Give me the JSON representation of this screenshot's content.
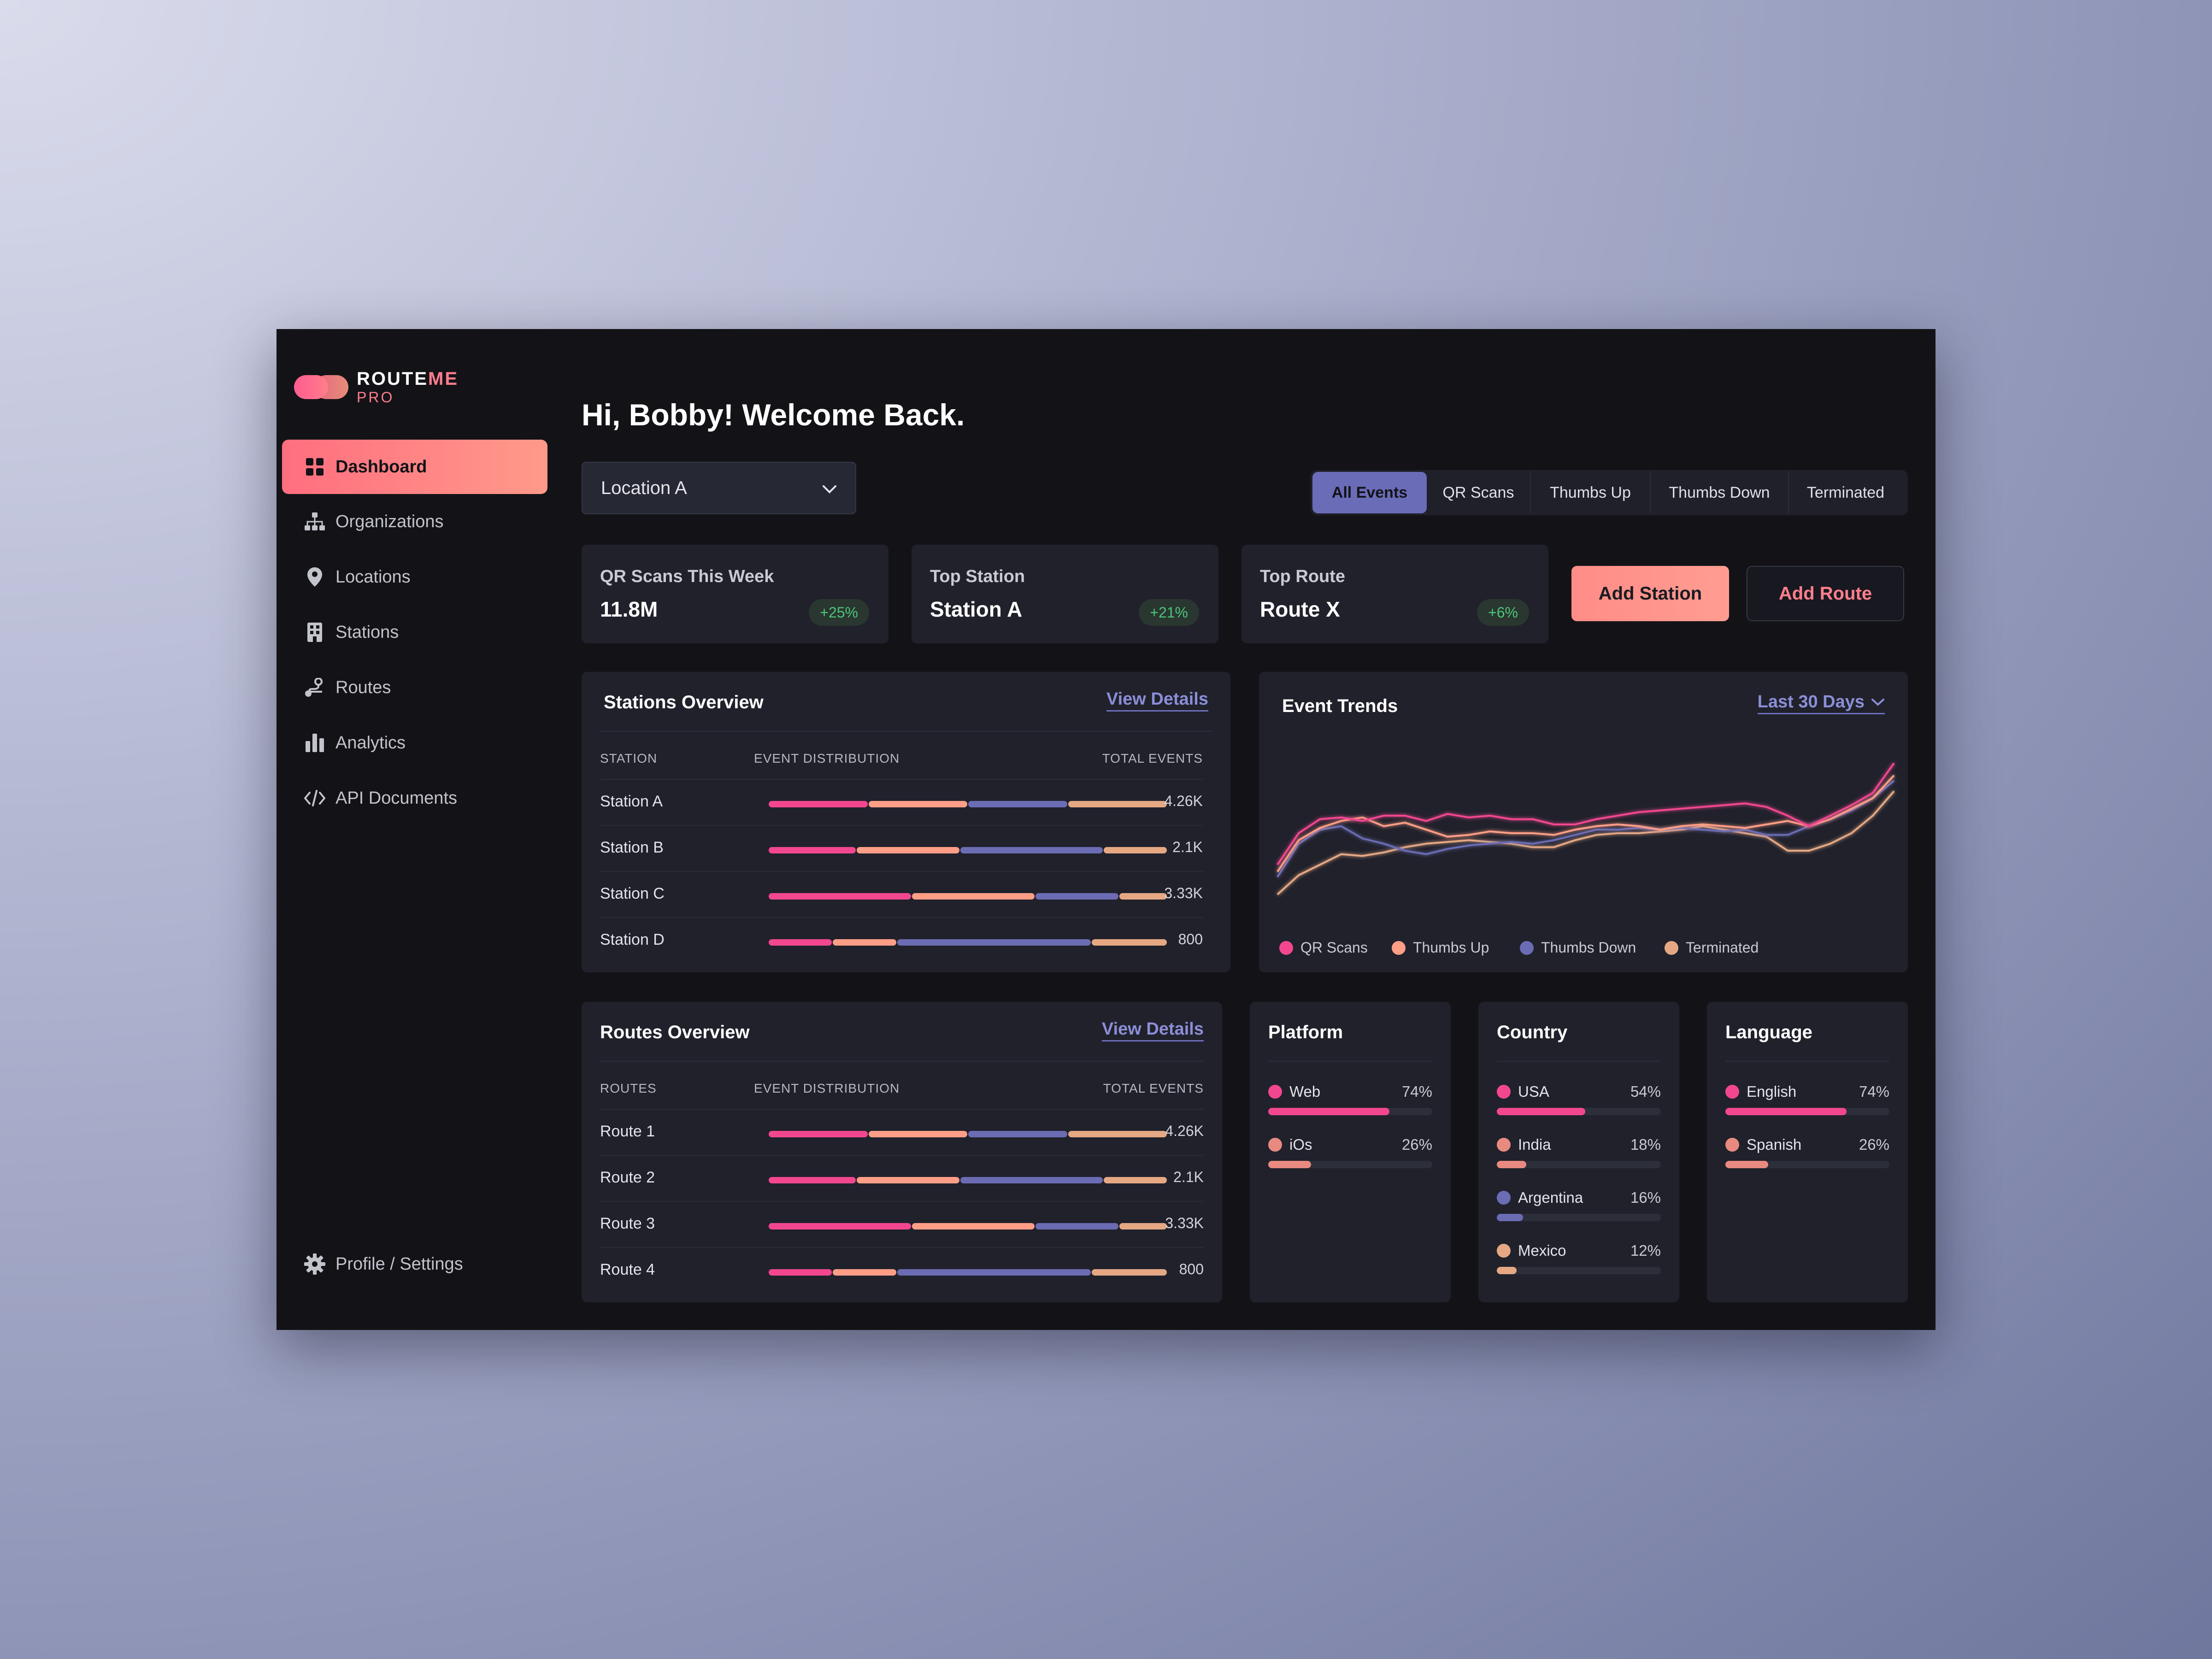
{
  "brand": {
    "name_part1": "ROUTE",
    "name_part2": "ME",
    "tier": "PRO"
  },
  "sidebar": {
    "items": [
      {
        "label": "Dashboard",
        "icon": "grid-icon",
        "active": true
      },
      {
        "label": "Organizations",
        "icon": "org-chart-icon"
      },
      {
        "label": "Locations",
        "icon": "map-pin-icon"
      },
      {
        "label": "Stations",
        "icon": "building-icon"
      },
      {
        "label": "Routes",
        "icon": "route-icon"
      },
      {
        "label": "Analytics",
        "icon": "bar-chart-icon"
      },
      {
        "label": "API Documents",
        "icon": "code-icon"
      }
    ],
    "settings_label": "Profile / Settings"
  },
  "header": {
    "greeting": "Hi, Bobby! Welcome Back.",
    "location_select": "Location A",
    "filters": [
      "All Events",
      "QR Scans",
      "Thumbs Up",
      "Thumbs Down",
      "Terminated"
    ],
    "active_filter": "All Events"
  },
  "stats": [
    {
      "label": "QR Scans This Week",
      "value": "11.8M",
      "change": "+25%"
    },
    {
      "label": "Top Station",
      "value": "Station A",
      "change": "+21%"
    },
    {
      "label": "Top Route",
      "value": "Route X",
      "change": "+6%"
    }
  ],
  "actions": {
    "add_station": "Add Station",
    "add_route": "Add Route"
  },
  "colors": {
    "qr": "#f2478f",
    "up": "#ff9e86",
    "down": "#6b6cb3",
    "term": "#e5a883",
    "accent": "#ff8c87",
    "positive": "#4bc57a"
  },
  "stations_overview": {
    "title": "Stations Overview",
    "link": "View Details",
    "headers": {
      "name": "STATION",
      "dist": "EVENT DISTRIBUTION",
      "total": "TOTAL EVENTS"
    },
    "rows": [
      {
        "name": "Station A",
        "dist": [
          25,
          25,
          25,
          25
        ],
        "total": "4.26K"
      },
      {
        "name": "Station B",
        "dist": [
          22,
          26,
          36,
          16
        ],
        "total": "2.1K"
      },
      {
        "name": "Station C",
        "dist": [
          36,
          31,
          21,
          12
        ],
        "total": "3.33K"
      },
      {
        "name": "Station D",
        "dist": [
          16,
          16,
          49,
          19
        ],
        "total": "800"
      }
    ]
  },
  "routes_overview": {
    "title": "Routes Overview",
    "link": "View Details",
    "headers": {
      "name": "ROUTES",
      "dist": "EVENT DISTRIBUTION",
      "total": "TOTAL EVENTS"
    },
    "rows": [
      {
        "name": "Route 1",
        "dist": [
          25,
          25,
          25,
          25
        ],
        "total": "4.26K"
      },
      {
        "name": "Route 2",
        "dist": [
          22,
          26,
          36,
          16
        ],
        "total": "2.1K"
      },
      {
        "name": "Route 3",
        "dist": [
          36,
          31,
          21,
          12
        ],
        "total": "3.33K"
      },
      {
        "name": "Route 4",
        "dist": [
          16,
          16,
          49,
          19
        ],
        "total": "800"
      }
    ]
  },
  "event_trends": {
    "title": "Event Trends",
    "range_select": "Last 30 Days"
  },
  "chart_data": {
    "type": "line",
    "title": "Event Trends",
    "x": [
      1,
      2,
      3,
      4,
      5,
      6,
      7,
      8,
      9,
      10,
      11,
      12,
      13,
      14,
      15,
      16,
      17,
      18,
      19,
      20,
      21,
      22,
      23,
      24,
      25,
      26,
      27,
      28,
      29,
      30
    ],
    "ylim": [
      0,
      100
    ],
    "grid": false,
    "legend_position": "bottom-left",
    "series": [
      {
        "name": "QR Scans",
        "color": "#f2478f",
        "values": [
          32,
          50,
          58,
          59,
          57,
          60,
          60,
          57,
          61,
          59,
          60,
          58,
          58,
          55,
          55,
          58,
          60,
          62,
          63,
          64,
          65,
          66,
          67,
          65,
          60,
          54,
          60,
          66,
          73,
          90
        ]
      },
      {
        "name": "Thumbs Up",
        "color": "#ff9e86",
        "values": [
          28,
          46,
          53,
          57,
          59,
          54,
          56,
          52,
          48,
          49,
          51,
          50,
          50,
          49,
          52,
          54,
          55,
          54,
          52,
          54,
          55,
          54,
          53,
          55,
          57,
          54,
          58,
          64,
          70,
          83
        ]
      },
      {
        "name": "Thumbs Down",
        "color": "#6b6cb3",
        "values": [
          25,
          44,
          52,
          54,
          47,
          44,
          40,
          38,
          41,
          43,
          44,
          45,
          44,
          46,
          49,
          52,
          52,
          53,
          52,
          53,
          52,
          51,
          52,
          49,
          49,
          54,
          58,
          63,
          70,
          80
        ]
      },
      {
        "name": "Terminated",
        "color": "#e5a883",
        "values": [
          15,
          26,
          32,
          38,
          37,
          39,
          42,
          44,
          45,
          46,
          45,
          44,
          42,
          42,
          46,
          49,
          50,
          50,
          51,
          52,
          54,
          52,
          50,
          48,
          40,
          40,
          44,
          50,
          60,
          74
        ]
      }
    ]
  },
  "platform": {
    "title": "Platform",
    "items": [
      {
        "label": "Web",
        "pct": "74%",
        "value": 74,
        "color": "#f2478f"
      },
      {
        "label": "iOs",
        "pct": "26%",
        "value": 26,
        "color": "#e88a80"
      }
    ]
  },
  "country": {
    "title": "Country",
    "items": [
      {
        "label": "USA",
        "pct": "54%",
        "value": 54,
        "color": "#f2478f"
      },
      {
        "label": "India",
        "pct": "18%",
        "value": 18,
        "color": "#e88a80"
      },
      {
        "label": "Argentina",
        "pct": "16%",
        "value": 16,
        "color": "#6b6cb3"
      },
      {
        "label": "Mexico",
        "pct": "12%",
        "value": 12,
        "color": "#e5a883"
      }
    ]
  },
  "language": {
    "title": "Language",
    "items": [
      {
        "label": "English",
        "pct": "74%",
        "value": 74,
        "color": "#f2478f"
      },
      {
        "label": "Spanish",
        "pct": "26%",
        "value": 26,
        "color": "#e88a80"
      }
    ]
  }
}
